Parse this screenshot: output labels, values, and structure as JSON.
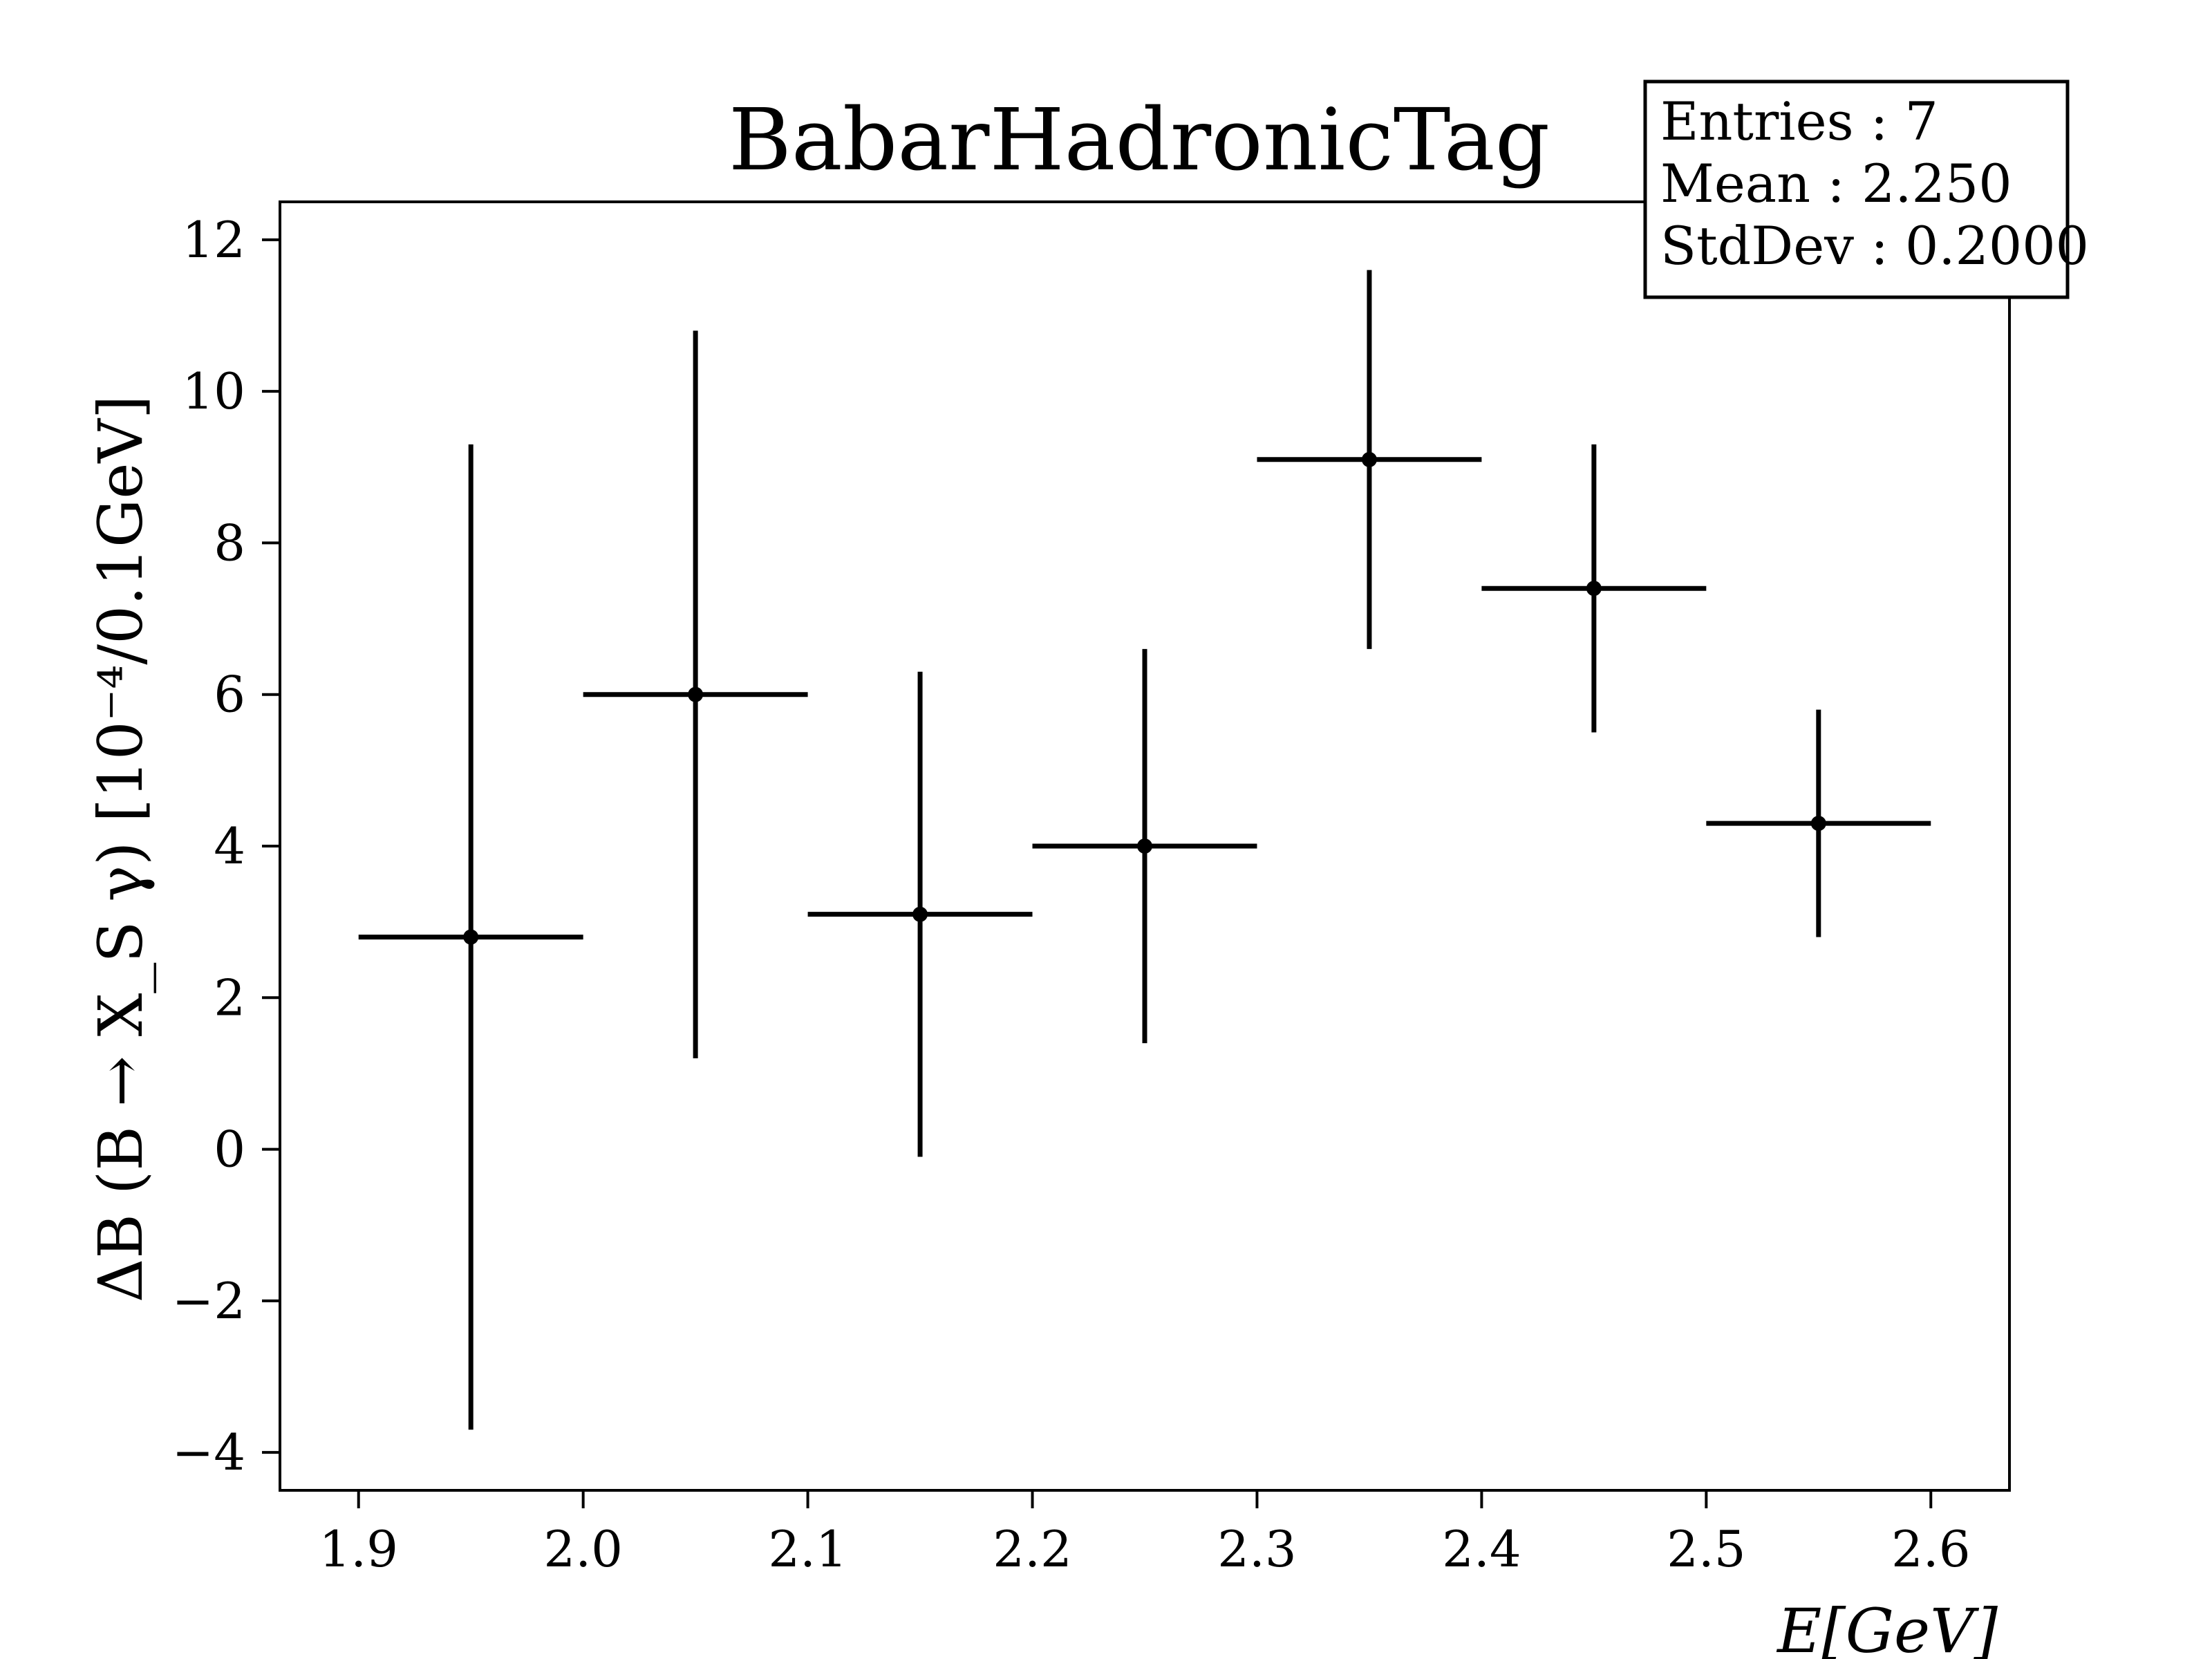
{
  "chart_data": {
    "type": "scatter",
    "title": "BabarHadronicTag",
    "xlabel": "E[GeV]",
    "ylabel": "ΔB (B → X_S γ)  [10⁻⁴/0.1GeV]",
    "xlim": [
      1.865,
      2.635
    ],
    "ylim": [
      -4.5,
      12.5
    ],
    "xticks": [
      "1.9",
      "2.0",
      "2.1",
      "2.2",
      "2.3",
      "2.4",
      "2.5",
      "2.6"
    ],
    "xtick_values": [
      1.9,
      2.0,
      2.1,
      2.2,
      2.3,
      2.4,
      2.5,
      2.6
    ],
    "yticks": [
      "−4",
      "−2",
      "0",
      "2",
      "4",
      "6",
      "8",
      "10",
      "12"
    ],
    "ytick_values": [
      -4,
      -2,
      0,
      2,
      4,
      6,
      8,
      10,
      12
    ],
    "grid": false,
    "legend": "none",
    "series": [
      {
        "x": [
          1.95,
          2.05,
          2.15,
          2.25,
          2.35,
          2.45,
          2.55
        ],
        "y": [
          2.8,
          6.0,
          3.1,
          4.0,
          9.1,
          7.4,
          4.3
        ],
        "x_err": [
          0.05,
          0.05,
          0.05,
          0.05,
          0.05,
          0.05,
          0.05
        ],
        "y_low": [
          -3.7,
          1.2,
          -0.1,
          1.4,
          6.6,
          5.5,
          2.8
        ],
        "y_high": [
          9.3,
          10.8,
          6.3,
          6.6,
          11.6,
          9.3,
          5.8
        ],
        "color": "#000000"
      }
    ],
    "stats_box": {
      "entries": "Entries : 7",
      "mean": "Mean : 2.250",
      "stddev": "StdDev : 0.2000"
    }
  }
}
